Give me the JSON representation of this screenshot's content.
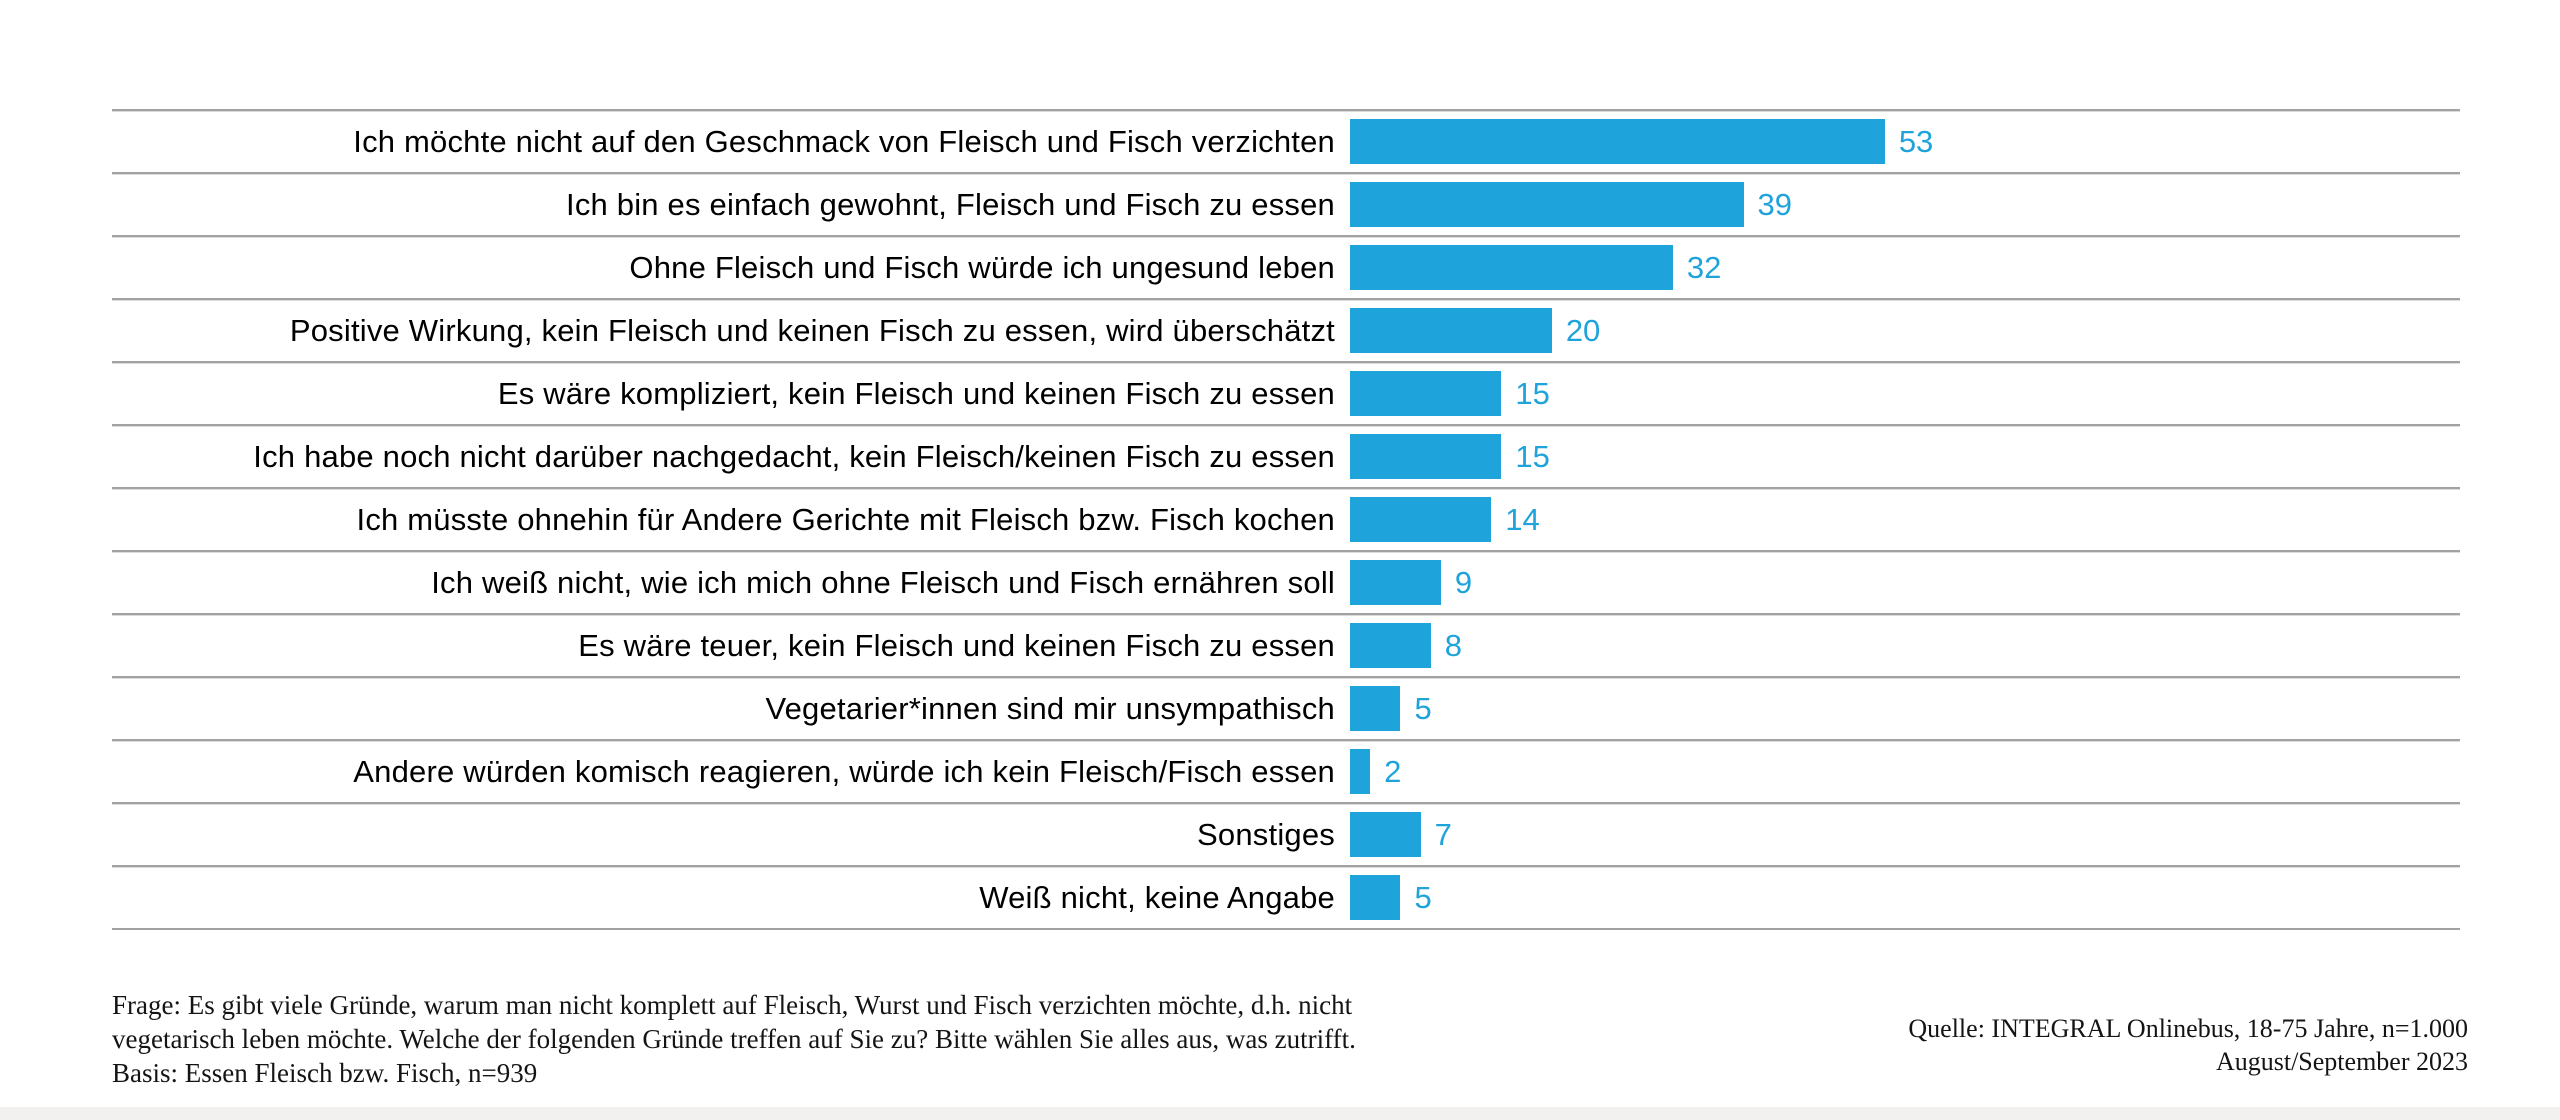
{
  "chart_data": {
    "type": "bar",
    "orientation": "horizontal",
    "title": "",
    "xlabel": "",
    "ylabel": "",
    "xlim": [
      0,
      110
    ],
    "grid": "row-dividers",
    "legend": "none",
    "bar_color": "#1FA3DB",
    "value_label_color": "#1FA3DB",
    "divider_color": "#a2a2a2",
    "categories": [
      "Ich möchte nicht auf den Geschmack von Fleisch und Fisch verzichten",
      "Ich bin es einfach gewohnt, Fleisch und Fisch zu essen",
      "Ohne Fleisch und Fisch würde ich ungesund leben",
      "Positive Wirkung, kein Fleisch und keinen Fisch zu essen, wird überschätzt",
      "Es wäre kompliziert, kein Fleisch und keinen Fisch zu essen",
      "Ich habe noch nicht darüber nachgedacht, kein Fleisch/keinen Fisch zu essen",
      "Ich müsste ohnehin für Andere Gerichte mit Fleisch bzw. Fisch kochen",
      "Ich weiß nicht, wie ich mich ohne Fleisch und Fisch ernähren soll",
      "Es wäre teuer, kein Fleisch und keinen Fisch zu essen",
      "Vegetarier*innen sind mir unsympathisch",
      "Andere würden komisch reagieren, würde ich kein Fleisch/Fisch essen",
      "Sonstiges",
      "Weiß nicht, keine Angabe"
    ],
    "values": [
      53,
      39,
      32,
      20,
      15,
      15,
      14,
      9,
      8,
      5,
      2,
      7,
      5
    ]
  },
  "footnote": {
    "lines": [
      "Frage: Es gibt viele Gründe, warum man nicht komplett auf Fleisch, Wurst und Fisch verzichten möchte, d.h. nicht",
      "vegetarisch leben möchte. Welche der folgenden Gründe treffen auf Sie zu? Bitte wählen Sie alles aus, was zutrifft.",
      "Basis: Essen Fleisch bzw. Fisch, n=939"
    ]
  },
  "source": {
    "lines": [
      "Quelle: INTEGRAL Onlinebus, 18-75 Jahre, n=1.000",
      "August/September 2023"
    ]
  }
}
